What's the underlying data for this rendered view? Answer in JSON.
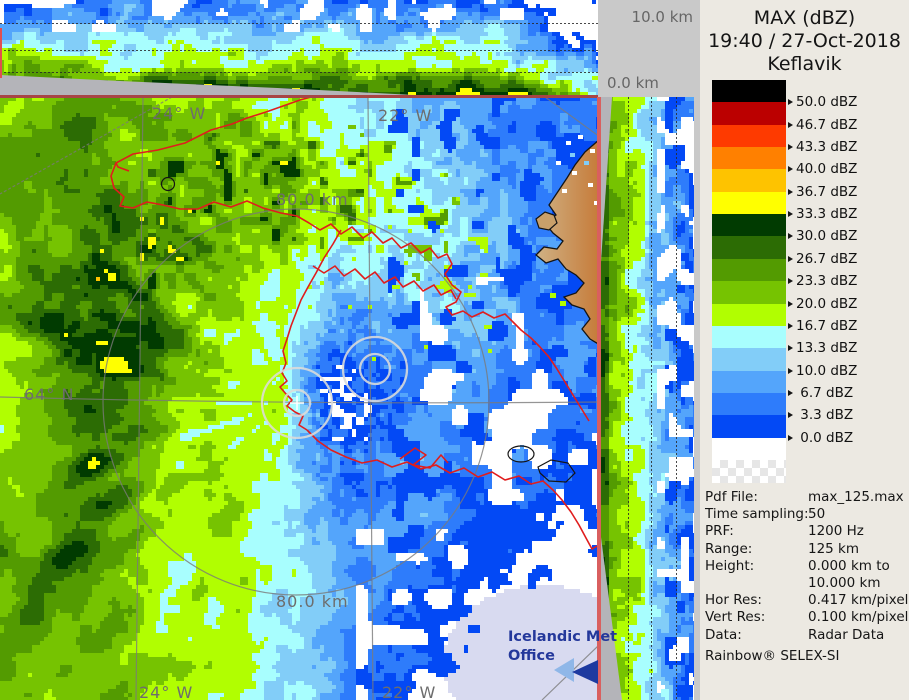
{
  "header": {
    "title": "MAX (dBZ)",
    "datetime": "19:40 / 27-Oct-2018",
    "site": "Keflavik"
  },
  "legend": {
    "blocks": [
      "#000000",
      "#bb0000",
      "#fe3a00",
      "#ff8000",
      "#fec300",
      "#ffff00",
      "#013b01",
      "#2c6c04",
      "#539b01",
      "#76c301",
      "#b1fe01",
      "#a8fefe",
      "#82cdf8",
      "#54a5fb",
      "#2e7cfb",
      "#0349f5",
      "#ffffff"
    ],
    "labels": [
      "50.0 dBZ",
      "46.7 dBZ",
      "43.3 dBZ",
      "40.0 dBZ",
      "36.7 dBZ",
      "33.3 dBZ",
      "30.0 dBZ",
      "26.7 dBZ",
      "23.3 dBZ",
      "20.0 dBZ",
      "16.7 dBZ",
      "13.3 dBZ",
      "10.0 dBZ",
      " 6.7 dBZ",
      " 3.3 dBZ",
      " 0.0 dBZ"
    ]
  },
  "info": {
    "rows": [
      {
        "label": "Pdf File:",
        "value": "max_125.max"
      },
      {
        "label": "Time sampling:",
        "value": "50"
      },
      {
        "label": "PRF:",
        "value": "1200 Hz"
      },
      {
        "label": "Range:",
        "value": "125 km"
      },
      {
        "label": "Height:",
        "value": "0.000 km to"
      },
      {
        "label": "",
        "value": "10.000 km"
      },
      {
        "label": "Hor Res:",
        "value": "0.417 km/pixel"
      },
      {
        "label": "Vert Res:",
        "value": "0.100 km/pixel"
      },
      {
        "label": "Data:",
        "value": "Radar Data"
      }
    ],
    "footer": "Rainbow® SELEX-SI"
  },
  "profile_axis": {
    "max": "10.0 km",
    "min": "0.0 km"
  },
  "map_labels": {
    "meridian_left": "24° W",
    "meridian_right": "22° W",
    "parallel": "64° N",
    "ring": "80.0 km",
    "watermark_line1": "Icelandic Met",
    "watermark_line2": "Office"
  },
  "colors": {
    "palette": [
      {
        "t": 50.0,
        "c": "#000000"
      },
      {
        "t": 46.7,
        "c": "#bb0000"
      },
      {
        "t": 43.3,
        "c": "#fe3a00"
      },
      {
        "t": 40.0,
        "c": "#ff8000"
      },
      {
        "t": 36.7,
        "c": "#fec300"
      },
      {
        "t": 33.3,
        "c": "#ffff00"
      },
      {
        "t": 30.0,
        "c": "#013b01"
      },
      {
        "t": 26.7,
        "c": "#2c6c04"
      },
      {
        "t": 23.3,
        "c": "#539b01"
      },
      {
        "t": 20.0,
        "c": "#76c301"
      },
      {
        "t": 16.7,
        "c": "#b1fe01"
      },
      {
        "t": 13.3,
        "c": "#a8fefe"
      },
      {
        "t": 10.0,
        "c": "#82cdf8"
      },
      {
        "t": 6.7,
        "c": "#54a5fb"
      },
      {
        "t": 3.3,
        "c": "#2e7cfb"
      },
      {
        "t": 0.0,
        "c": "#0349f5"
      }
    ],
    "no_echo": "#ffffff",
    "blocked_gray": "#b4b4b9",
    "gap_gray": "#c9c9c9",
    "panel_bg": "#ece9e2",
    "overlay_red": "#e01d1d",
    "land_light": "#cfb285",
    "land_dark": "#c67a38",
    "watermark_tint": "#d8daf0",
    "watermark_blue": "#24389b"
  }
}
